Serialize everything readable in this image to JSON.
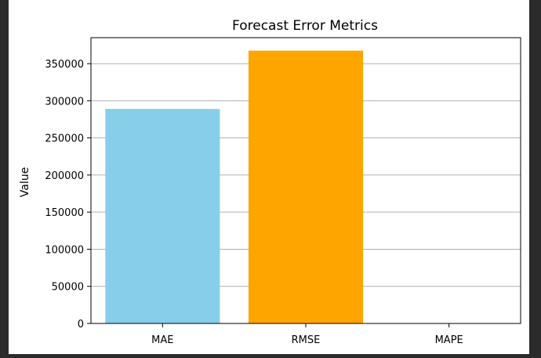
{
  "chart_data": {
    "type": "bar",
    "title": "Forecast Error Metrics",
    "xlabel": "",
    "ylabel": "Value",
    "categories": [
      "MAE",
      "RMSE",
      "MAPE"
    ],
    "values": [
      289000,
      367500,
      12
    ],
    "colors": [
      "#87ceeb",
      "#ffa500",
      "#87ceeb"
    ],
    "ylim": [
      0,
      385000
    ],
    "yticks": [
      0,
      50000,
      100000,
      150000,
      200000,
      250000,
      300000,
      350000
    ],
    "ytick_labels": [
      "0",
      "50000",
      "100000",
      "150000",
      "200000",
      "250000",
      "300000",
      "350000"
    ],
    "grid": "y",
    "legend": "none"
  }
}
